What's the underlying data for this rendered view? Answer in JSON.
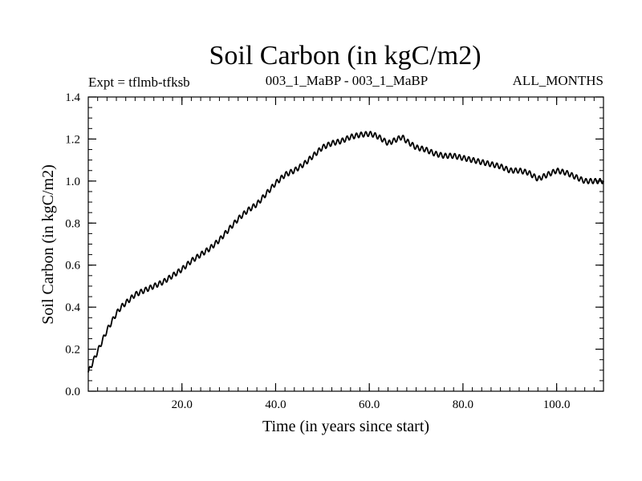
{
  "chart_data": {
    "type": "line",
    "title": "Soil Carbon (in kgC/m2)",
    "subtitle_left": "Expt = tflmb-tfksb",
    "subtitle_center": "003_1_MaBP - 003_1_MaBP",
    "subtitle_right": "ALL_MONTHS",
    "xlabel": "Time (in years since start)",
    "ylabel": "Soil Carbon (in kgC/m2)",
    "xlim": [
      0,
      110
    ],
    "ylim": [
      0,
      1.4
    ],
    "x_ticks": [
      20,
      40,
      60,
      80,
      100
    ],
    "x_tick_labels": [
      "20.0",
      "40.0",
      "60.0",
      "80.0",
      "100.0"
    ],
    "y_ticks": [
      0,
      0.2,
      0.4,
      0.6,
      0.8,
      1.0,
      1.2,
      1.4
    ],
    "y_tick_labels": [
      "0.0",
      "0.2",
      "0.4",
      "0.6",
      "0.8",
      "1.0",
      "1.2",
      "1.4"
    ],
    "x_minor_step": 2,
    "y_minor_step": 0.05,
    "grid": false,
    "oscillation_amplitude": 0.012,
    "oscillation_period_years": 1,
    "series": [
      {
        "name": "Soil Carbon",
        "color": "#000000",
        "x": [
          0,
          1,
          2,
          3,
          4,
          5,
          6,
          7,
          8,
          10,
          12,
          14,
          16,
          18,
          20,
          22,
          24,
          26,
          28,
          30,
          32,
          34,
          36,
          38,
          40,
          42,
          44,
          46,
          48,
          50,
          52,
          54,
          56,
          58,
          60,
          61,
          62,
          64,
          66,
          67,
          68,
          70,
          72,
          74,
          76,
          78,
          80,
          82,
          84,
          86,
          88,
          90,
          92,
          94,
          96,
          98,
          100,
          102,
          104,
          106,
          108,
          110
        ],
        "values": [
          0.09,
          0.14,
          0.19,
          0.24,
          0.29,
          0.33,
          0.37,
          0.4,
          0.42,
          0.46,
          0.48,
          0.5,
          0.52,
          0.55,
          0.58,
          0.62,
          0.65,
          0.68,
          0.72,
          0.77,
          0.82,
          0.86,
          0.89,
          0.94,
          0.99,
          1.03,
          1.05,
          1.08,
          1.12,
          1.16,
          1.18,
          1.19,
          1.21,
          1.22,
          1.225,
          1.22,
          1.21,
          1.18,
          1.2,
          1.21,
          1.19,
          1.16,
          1.15,
          1.13,
          1.12,
          1.12,
          1.11,
          1.1,
          1.09,
          1.08,
          1.07,
          1.05,
          1.05,
          1.04,
          1.01,
          1.03,
          1.05,
          1.04,
          1.02,
          1.0,
          1.0,
          1.0
        ]
      }
    ]
  }
}
